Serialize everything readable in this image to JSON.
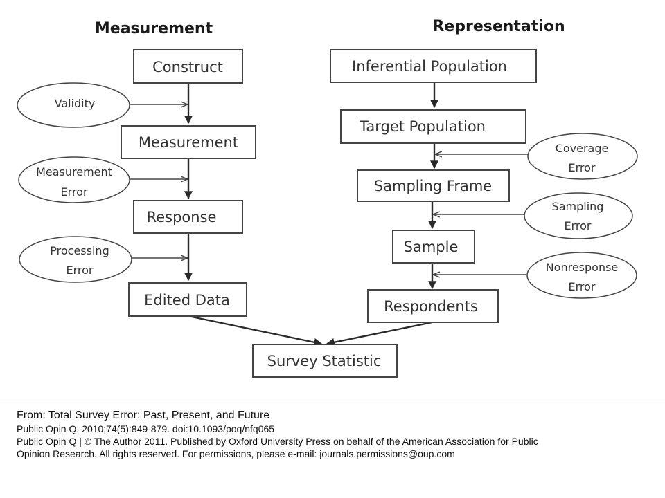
{
  "diagram": {
    "headings": {
      "left": "Measurement",
      "right": "Representation"
    },
    "measurement_boxes": {
      "construct": "Construct",
      "measurement": "Measurement",
      "response": "Response",
      "edited_data": "Edited Data"
    },
    "representation_boxes": {
      "inferential_population": "Inferential Population",
      "target_population": "Target Population",
      "sampling_frame": "Sampling Frame",
      "sample": "Sample",
      "respondents": "Respondents"
    },
    "final_box": "Survey Statistic",
    "left_errors": {
      "validity": [
        "Validity"
      ],
      "measurement_error": [
        "Measurement",
        "Error"
      ],
      "processing_error": [
        "Processing",
        "Error"
      ]
    },
    "right_errors": {
      "coverage_error": [
        "Coverage",
        "Error"
      ],
      "sampling_error": [
        "Sampling",
        "Error"
      ],
      "nonresponse_error": [
        "Nonresponse",
        "Error"
      ]
    }
  },
  "caption": {
    "title": "From: Total Survey Error: Past, Present, and Future",
    "citation": "Public Opin Q. 2010;74(5):849-879. doi:10.1093/poq/nfq065",
    "copyright_1": "Public Opin Q | © The Author 2011. Published by Oxford University Press on behalf of the American Association for Public",
    "copyright_2": "Opinion Research. All rights reserved. For permissions, please e-mail: journals.permissions@oup.com"
  }
}
